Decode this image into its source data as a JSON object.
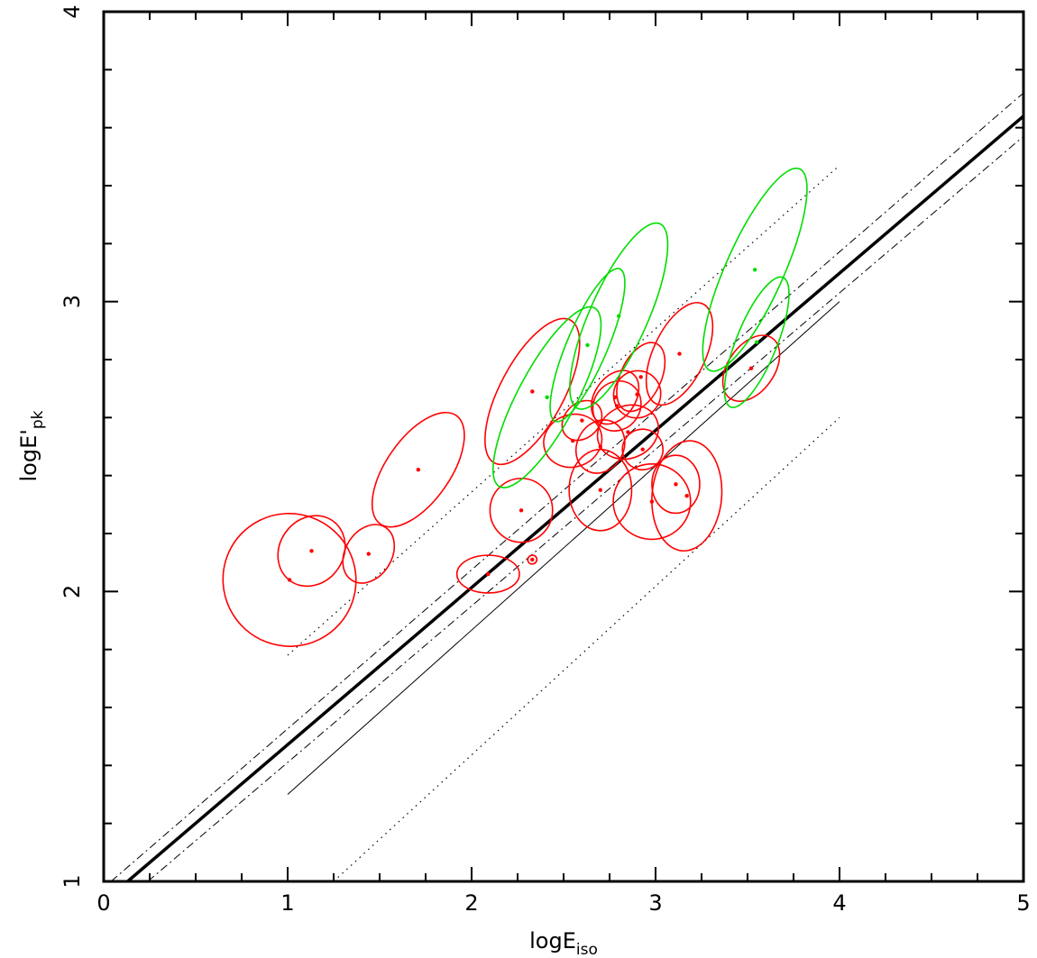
{
  "chart_data": {
    "type": "scatter",
    "xlabel": "logE",
    "xlabel_sub": "iso",
    "ylabel": "logE'",
    "ylabel_sub": "pk",
    "xlim": [
      0,
      5
    ],
    "ylim": [
      1,
      4
    ],
    "xticks": [
      "0",
      "1",
      "2",
      "3",
      "4",
      "5"
    ],
    "yticks": [
      "1",
      "2",
      "3",
      "4"
    ],
    "grid": false,
    "colors": {
      "red": "#ff0000",
      "green": "#00dd00",
      "line": "#000000"
    },
    "lines": [
      {
        "style": "thick-solid",
        "x": [
          0.13,
          5.0
        ],
        "y": [
          1.0,
          3.64
        ]
      },
      {
        "style": "dash-dot",
        "x": [
          0.04,
          5.0
        ],
        "y": [
          1.0,
          3.72
        ]
      },
      {
        "style": "dash-dot",
        "x": [
          0.24,
          5.0
        ],
        "y": [
          1.0,
          3.57
        ]
      },
      {
        "style": "thin-solid",
        "x": [
          1.0,
          4.0
        ],
        "y": [
          1.3,
          3.0
        ]
      },
      {
        "style": "dotted",
        "x": [
          1.0,
          4.0
        ],
        "y": [
          1.78,
          3.47
        ]
      },
      {
        "style": "dotted",
        "x": [
          1.25,
          4.0
        ],
        "y": [
          1.0,
          2.6
        ]
      }
    ],
    "points": [
      {
        "series": "red",
        "x": 1.01,
        "y": 2.04,
        "rx": 0.36,
        "ry": 0.23,
        "angle": 48
      },
      {
        "series": "red",
        "x": 1.13,
        "y": 2.14,
        "rx": 0.2,
        "ry": 0.11,
        "angle": 55
      },
      {
        "series": "red",
        "x": 1.44,
        "y": 2.13,
        "rx": 0.17,
        "ry": 0.08,
        "angle": 58
      },
      {
        "series": "red",
        "x": 1.71,
        "y": 2.42,
        "rx": 0.36,
        "ry": 0.11,
        "angle": 55
      },
      {
        "series": "red",
        "x": 2.09,
        "y": 2.06,
        "rx": 0.17,
        "ry": 0.065,
        "angle": 0
      },
      {
        "series": "red",
        "x": 2.33,
        "y": 2.11,
        "rx": 0.025,
        "ry": 0.015,
        "angle": 30
      },
      {
        "series": "red",
        "x": 2.27,
        "y": 2.28,
        "rx": 0.17,
        "ry": 0.11,
        "angle": 0
      },
      {
        "series": "red",
        "x": 2.33,
        "y": 2.69,
        "rx": 0.44,
        "ry": 0.11,
        "angle": 62
      },
      {
        "series": "red",
        "x": 2.55,
        "y": 2.52,
        "rx": 0.16,
        "ry": 0.09,
        "angle": 20
      },
      {
        "series": "red",
        "x": 2.6,
        "y": 2.59,
        "rx": 0.12,
        "ry": 0.06,
        "angle": 45
      },
      {
        "series": "red",
        "x": 2.7,
        "y": 2.5,
        "rx": 0.15,
        "ry": 0.08,
        "angle": 60
      },
      {
        "series": "red",
        "x": 2.78,
        "y": 2.67,
        "rx": 0.16,
        "ry": 0.07,
        "angle": 55
      },
      {
        "series": "red",
        "x": 2.79,
        "y": 2.64,
        "rx": 0.14,
        "ry": 0.08,
        "angle": 55
      },
      {
        "series": "red",
        "x": 2.9,
        "y": 2.68,
        "rx": 0.13,
        "ry": 0.08,
        "angle": 45
      },
      {
        "series": "red",
        "x": 2.92,
        "y": 2.74,
        "rx": 0.2,
        "ry": 0.07,
        "angle": 65
      },
      {
        "series": "red",
        "x": 2.93,
        "y": 2.49,
        "rx": 0.11,
        "ry": 0.07,
        "angle": 20
      },
      {
        "series": "red",
        "x": 2.85,
        "y": 2.55,
        "rx": 0.17,
        "ry": 0.09,
        "angle": 25
      },
      {
        "series": "red",
        "x": 2.7,
        "y": 2.35,
        "rx": 0.17,
        "ry": 0.14,
        "angle": 0
      },
      {
        "series": "red",
        "x": 2.98,
        "y": 2.31,
        "rx": 0.21,
        "ry": 0.13,
        "angle": 0
      },
      {
        "series": "red",
        "x": 3.11,
        "y": 2.37,
        "rx": 0.13,
        "ry": 0.1,
        "angle": 0
      },
      {
        "series": "red",
        "x": 3.17,
        "y": 2.33,
        "rx": 0.3,
        "ry": 0.12,
        "angle": 85
      },
      {
        "series": "red",
        "x": 3.13,
        "y": 2.82,
        "rx": 0.3,
        "ry": 0.09,
        "angle": 65
      },
      {
        "series": "red",
        "x": 3.52,
        "y": 2.77,
        "rx": 0.2,
        "ry": 0.08,
        "angle": 55
      },
      {
        "series": "green",
        "x": 2.41,
        "y": 2.67,
        "rx": 0.55,
        "ry": 0.1,
        "angle": 62
      },
      {
        "series": "green",
        "x": 2.63,
        "y": 2.85,
        "rx": 0.45,
        "ry": 0.07,
        "angle": 67
      },
      {
        "series": "green",
        "x": 2.8,
        "y": 2.95,
        "rx": 0.55,
        "ry": 0.1,
        "angle": 66
      },
      {
        "series": "green",
        "x": 3.54,
        "y": 3.11,
        "rx": 0.6,
        "ry": 0.1,
        "angle": 66
      },
      {
        "series": "green",
        "x": 3.55,
        "y": 2.86,
        "rx": 0.38,
        "ry": 0.07,
        "angle": 68
      }
    ]
  }
}
